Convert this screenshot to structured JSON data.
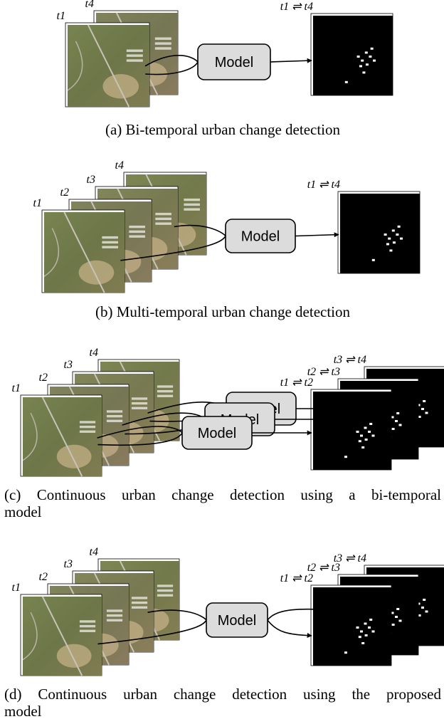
{
  "panels": [
    {
      "images": [
        "t1",
        "t4"
      ],
      "models": [
        "Model"
      ],
      "outputs": [
        "t1 ⇌ t4"
      ],
      "caption": [
        "(a) Bi-temporal urban change detection"
      ]
    },
    {
      "images": [
        "t1",
        "t2",
        "t3",
        "t4"
      ],
      "models": [
        "Model"
      ],
      "outputs": [
        "t1 ⇌ t4"
      ],
      "caption": [
        "(b) Multi-temporal urban change detection"
      ]
    },
    {
      "images": [
        "t1",
        "t2",
        "t3",
        "t4"
      ],
      "models": [
        "Model",
        "Model",
        "Model"
      ],
      "outputs": [
        "t1 ⇌ t2",
        "t2 ⇌ t3",
        "t3 ⇌ t4"
      ],
      "caption": [
        "(c) Continuous urban change detection using a bi-temporal",
        "model"
      ]
    },
    {
      "images": [
        "t1",
        "t2",
        "t3",
        "t4"
      ],
      "models": [
        "Model"
      ],
      "outputs": [
        "t1 ⇌ t2",
        "t2 ⇌ t3",
        "t3 ⇌ t4"
      ],
      "caption": [
        "(d) Continuous urban change detection using the proposed",
        "model"
      ]
    }
  ]
}
